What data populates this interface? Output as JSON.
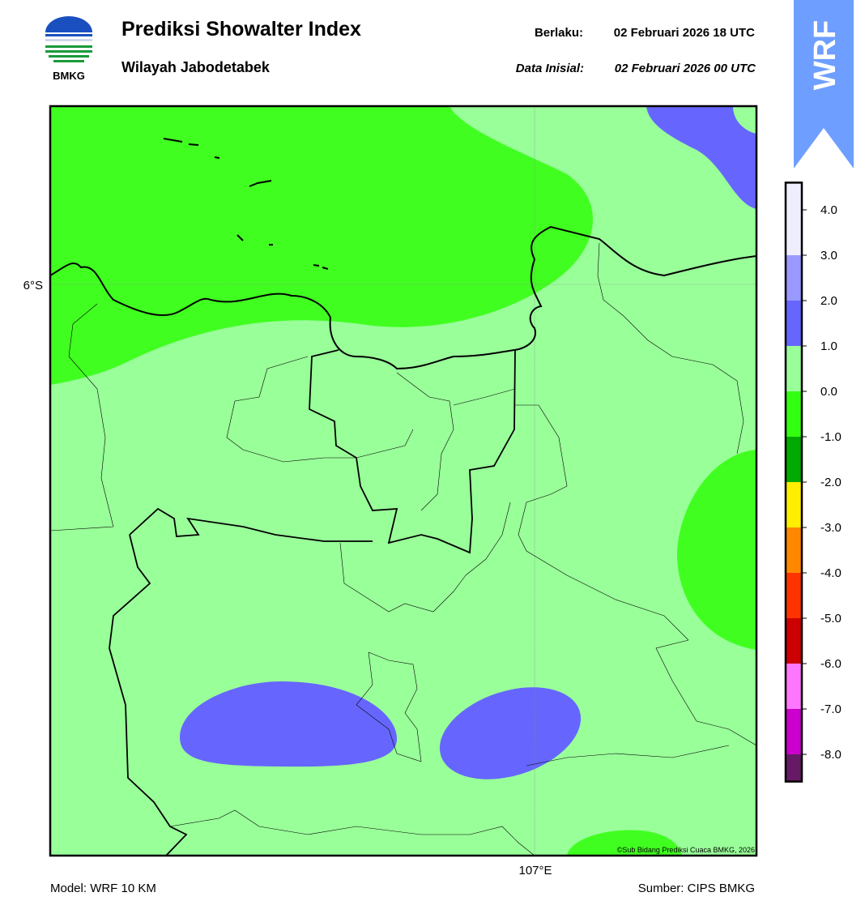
{
  "header": {
    "title": "Prediksi Showalter Index",
    "subtitle": "Wilayah Jabodetabek",
    "valid_label": "Berlaku:",
    "valid_time": "02 Februari 2026 18 UTC",
    "init_label": "Data Inisial:",
    "init_time": "02 Februari 2026 00 UTC",
    "logo_text": "BMKG",
    "banner": "WRF"
  },
  "map": {
    "lat_label": "6°S",
    "lon_label": "107°E",
    "copyright": "©Sub Bidang Prediksi Cuaca BMKG, 2026"
  },
  "colorbar": {
    "colors": [
      "#661a66",
      "#cc00cc",
      "#ff77ff",
      "#cc0000",
      "#ff3300",
      "#ff8800",
      "#ffee00",
      "#00aa00",
      "#33ff11",
      "#99ff99",
      "#6666ff",
      "#9999ff",
      "#eeeeff"
    ],
    "ticks": [
      {
        "value": -8,
        "label": "-8.0"
      },
      {
        "value": -7,
        "label": "-7.0"
      },
      {
        "value": -6,
        "label": "-6.0"
      },
      {
        "value": -5,
        "label": "-5.0"
      },
      {
        "value": -4,
        "label": "-4.0"
      },
      {
        "value": -3,
        "label": "-3.0"
      },
      {
        "value": -2,
        "label": "-2.0"
      },
      {
        "value": -1,
        "label": "-1.0"
      },
      {
        "value": 0,
        "label": "0.0"
      },
      {
        "value": 1,
        "label": "1.0"
      },
      {
        "value": 2,
        "label": "2.0"
      },
      {
        "value": 3,
        "label": "3.0"
      },
      {
        "value": 4,
        "label": "4.0"
      }
    ]
  },
  "footer": {
    "model": "Model: WRF 10 KM",
    "source": "Sumber: CIPS BMKG"
  }
}
